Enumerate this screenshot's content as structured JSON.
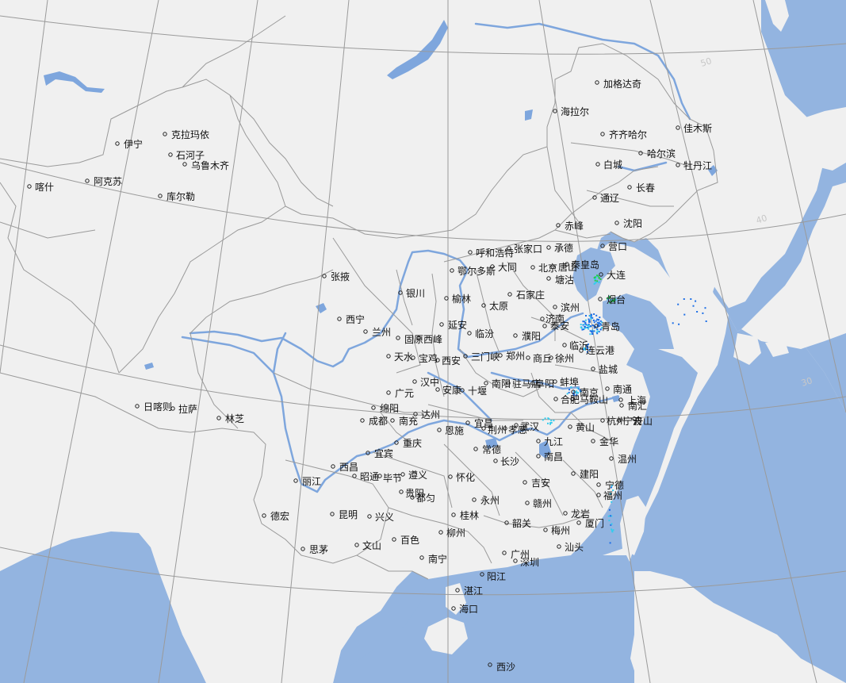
{
  "map": {
    "colors": {
      "land": "#f0f0f0",
      "water": "#93b4e0",
      "river": "#7ea6dd",
      "border": "#9a9a9a",
      "graticule": "#9a9a9a",
      "city_dot": "#222222",
      "label": "#111111",
      "radar_blue": "#1e6fe6",
      "radar_cyan": "#33ccee",
      "radar_green": "#22cc44"
    },
    "latitude_labels": [
      "50",
      "40",
      "30"
    ],
    "cities": [
      {
        "name": "加格达奇"
      },
      {
        "name": "海拉尔"
      },
      {
        "name": "齐齐哈尔"
      },
      {
        "name": "佳木斯"
      },
      {
        "name": "哈尔滨"
      },
      {
        "name": "牡丹江"
      },
      {
        "name": "白城"
      },
      {
        "name": "长春"
      },
      {
        "name": "通辽"
      },
      {
        "name": "沈阳"
      },
      {
        "name": "赤峰"
      },
      {
        "name": "营口"
      },
      {
        "name": "大连"
      },
      {
        "name": "承德"
      },
      {
        "name": "张家口"
      },
      {
        "name": "呼和浩特"
      },
      {
        "name": "秦皇岛"
      },
      {
        "name": "北京"
      },
      {
        "name": "塘沽"
      },
      {
        "name": "唐山"
      },
      {
        "name": "大同"
      },
      {
        "name": "鄂尔多斯"
      },
      {
        "name": "石家庄"
      },
      {
        "name": "烟台"
      },
      {
        "name": "太原"
      },
      {
        "name": "榆林"
      },
      {
        "name": "银川"
      },
      {
        "name": "滨州"
      },
      {
        "name": "青岛"
      },
      {
        "name": "济南"
      },
      {
        "name": "泰安"
      },
      {
        "name": "延安"
      },
      {
        "name": "临汾"
      },
      {
        "name": "濮阳"
      },
      {
        "name": "临沂"
      },
      {
        "name": "连云港"
      },
      {
        "name": "西宁"
      },
      {
        "name": "兰州"
      },
      {
        "name": "固原"
      },
      {
        "name": "西峰"
      },
      {
        "name": "天水"
      },
      {
        "name": "宝鸡"
      },
      {
        "name": "西安"
      },
      {
        "name": "三门峡"
      },
      {
        "name": "郑州"
      },
      {
        "name": "商丘"
      },
      {
        "name": "徐州"
      },
      {
        "name": "盐城"
      },
      {
        "name": "张掖"
      },
      {
        "name": "伊宁"
      },
      {
        "name": "克拉玛依"
      },
      {
        "name": "石河子"
      },
      {
        "name": "乌鲁木齐"
      },
      {
        "name": "喀什"
      },
      {
        "name": "阿克苏"
      },
      {
        "name": "库尔勒"
      },
      {
        "name": "汉中"
      },
      {
        "name": "安康"
      },
      {
        "name": "十堰"
      },
      {
        "name": "南阳"
      },
      {
        "name": "驻马店"
      },
      {
        "name": "阜阳"
      },
      {
        "name": "蚌埠"
      },
      {
        "name": "南京"
      },
      {
        "name": "南通"
      },
      {
        "name": "广元"
      },
      {
        "name": "合肥"
      },
      {
        "name": "马鞍山"
      },
      {
        "name": "上海"
      },
      {
        "name": "南汇"
      },
      {
        "name": "日喀则"
      },
      {
        "name": "拉萨"
      },
      {
        "name": "林芝"
      },
      {
        "name": "绵阳"
      },
      {
        "name": "成都"
      },
      {
        "name": "南充"
      },
      {
        "name": "达州"
      },
      {
        "name": "宜昌"
      },
      {
        "name": "荆州"
      },
      {
        "name": "孝感"
      },
      {
        "name": "武汉"
      },
      {
        "name": "黄山"
      },
      {
        "name": "杭州"
      },
      {
        "name": "宁波"
      },
      {
        "name": "舟山"
      },
      {
        "name": "恩施"
      },
      {
        "name": "重庆"
      },
      {
        "name": "九江"
      },
      {
        "name": "金华"
      },
      {
        "name": "宜宾"
      },
      {
        "name": "常德"
      },
      {
        "name": "南昌"
      },
      {
        "name": "长沙"
      },
      {
        "name": "温州"
      },
      {
        "name": "西昌"
      },
      {
        "name": "昭通"
      },
      {
        "name": "毕节"
      },
      {
        "name": "遵义"
      },
      {
        "name": "怀化"
      },
      {
        "name": "吉安"
      },
      {
        "name": "建阳"
      },
      {
        "name": "丽江"
      },
      {
        "name": "宁德"
      },
      {
        "name": "福州"
      },
      {
        "name": "贵阳"
      },
      {
        "name": "都匀"
      },
      {
        "name": "永州"
      },
      {
        "name": "赣州"
      },
      {
        "name": "德宏"
      },
      {
        "name": "昆明"
      },
      {
        "name": "兴义"
      },
      {
        "name": "桂林"
      },
      {
        "name": "龙岩"
      },
      {
        "name": "厦门"
      },
      {
        "name": "韶关"
      },
      {
        "name": "梅州"
      },
      {
        "name": "百色"
      },
      {
        "name": "柳州"
      },
      {
        "name": "汕头"
      },
      {
        "name": "思茅"
      },
      {
        "name": "文山"
      },
      {
        "name": "广州"
      },
      {
        "name": "深圳"
      },
      {
        "name": "南宁"
      },
      {
        "name": "阳江"
      },
      {
        "name": "湛江"
      },
      {
        "name": "海口"
      },
      {
        "name": "西沙"
      }
    ]
  }
}
